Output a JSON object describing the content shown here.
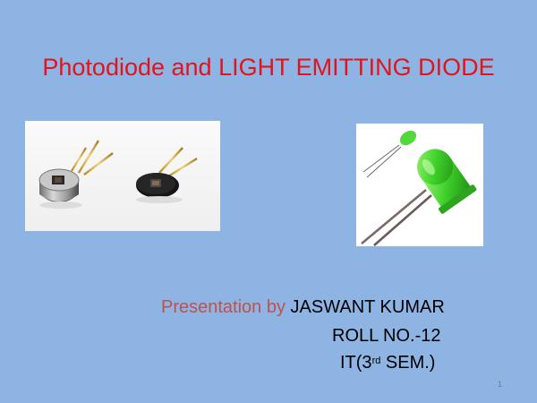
{
  "slide": {
    "title": "Photodiode and LIGHT EMITTING DIODE",
    "presenter": {
      "prefix": "Presentation by",
      "name": "JASWANT KUMAR",
      "roll": "ROLL NO.-12",
      "course_pre": "IT(3",
      "course_sup": "rd",
      "course_post": " SEM.)"
    },
    "page_number": "1"
  },
  "colors": {
    "background": "#8eb4e3",
    "title": "#e3131b",
    "presenter_prefix": "#c0504d"
  },
  "images": {
    "left": "photodiode-photo",
    "right": "green-led-photo"
  }
}
